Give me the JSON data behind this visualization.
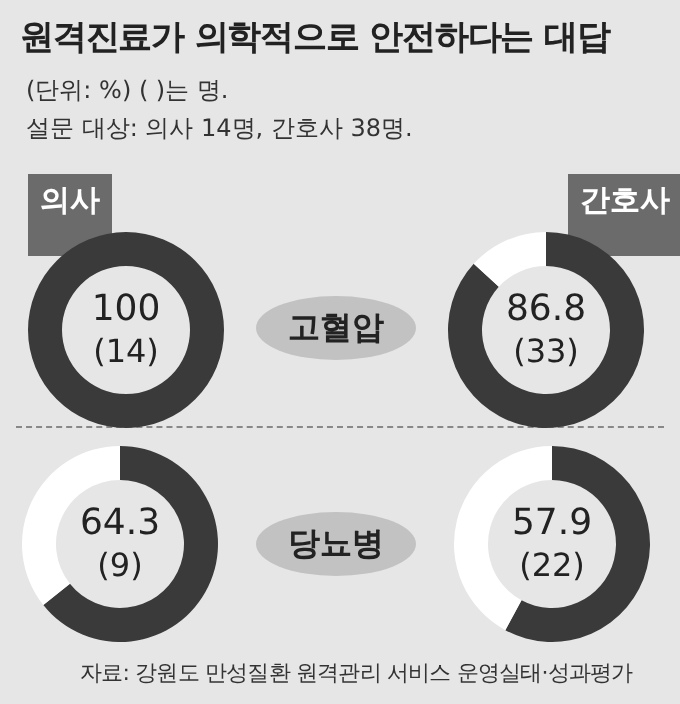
{
  "chart_data": [
    {
      "type": "other",
      "title": "원격진료가 의학적으로 안전하다는 대답",
      "subtitle": "(단위: %) ( )는 명.",
      "annotations": [
        "설문 대상: 의사 14명, 간호사 38명.",
        "자료: 강원도 만성질환 원격관리 서비스 운영실태·성과평가"
      ]
    },
    {
      "type": "donut",
      "title": "의사",
      "categories": [
        null,
        null
      ],
      "values": [
        100,
        0
      ],
      "colors": [
        "#3a3a3a",
        "#ffffff"
      ],
      "value_labels": [
        "100",
        null
      ],
      "annotations": [
        "(14)",
        "고혈압"
      ]
    },
    {
      "type": "donut",
      "title": "간호사",
      "categories": [
        null,
        null
      ],
      "values": [
        86.8,
        13.2
      ],
      "colors": [
        "#3a3a3a",
        "#ffffff"
      ],
      "value_labels": [
        "86.8",
        null
      ],
      "annotations": [
        "(33)"
      ]
    },
    {
      "type": "donut",
      "categories": [
        null,
        null
      ],
      "values": [
        64.3,
        35.7
      ],
      "colors": [
        "#3a3a3a",
        "#ffffff"
      ],
      "value_labels": [
        "64.3",
        null
      ],
      "annotations": [
        "(9)",
        "당뇨병"
      ]
    },
    {
      "type": "donut",
      "categories": [
        null,
        null
      ],
      "values": [
        57.9,
        42.1
      ],
      "colors": [
        "#3a3a3a",
        "#ffffff"
      ],
      "value_labels": [
        "57.9",
        null
      ],
      "annotations": [
        "(22)"
      ]
    }
  ]
}
